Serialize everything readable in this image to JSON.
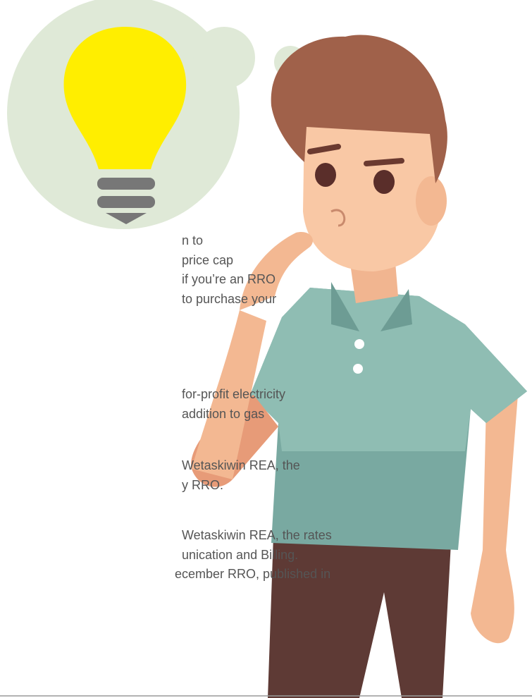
{
  "paragraphs": [
    {
      "lines": [
        "n to",
        "price cap",
        "if you’re an RRO",
        "to purchase your"
      ]
    },
    {
      "lines": [
        "for-profit electricity",
        "addition to gas"
      ]
    },
    {
      "lines": [
        "Wetaskiwin REA, the",
        "y RRO."
      ]
    },
    {
      "lines": [
        "Wetaskiwin REA, the rates",
        "unication and Billing.",
        "ecember RRO, published in"
      ]
    }
  ]
}
